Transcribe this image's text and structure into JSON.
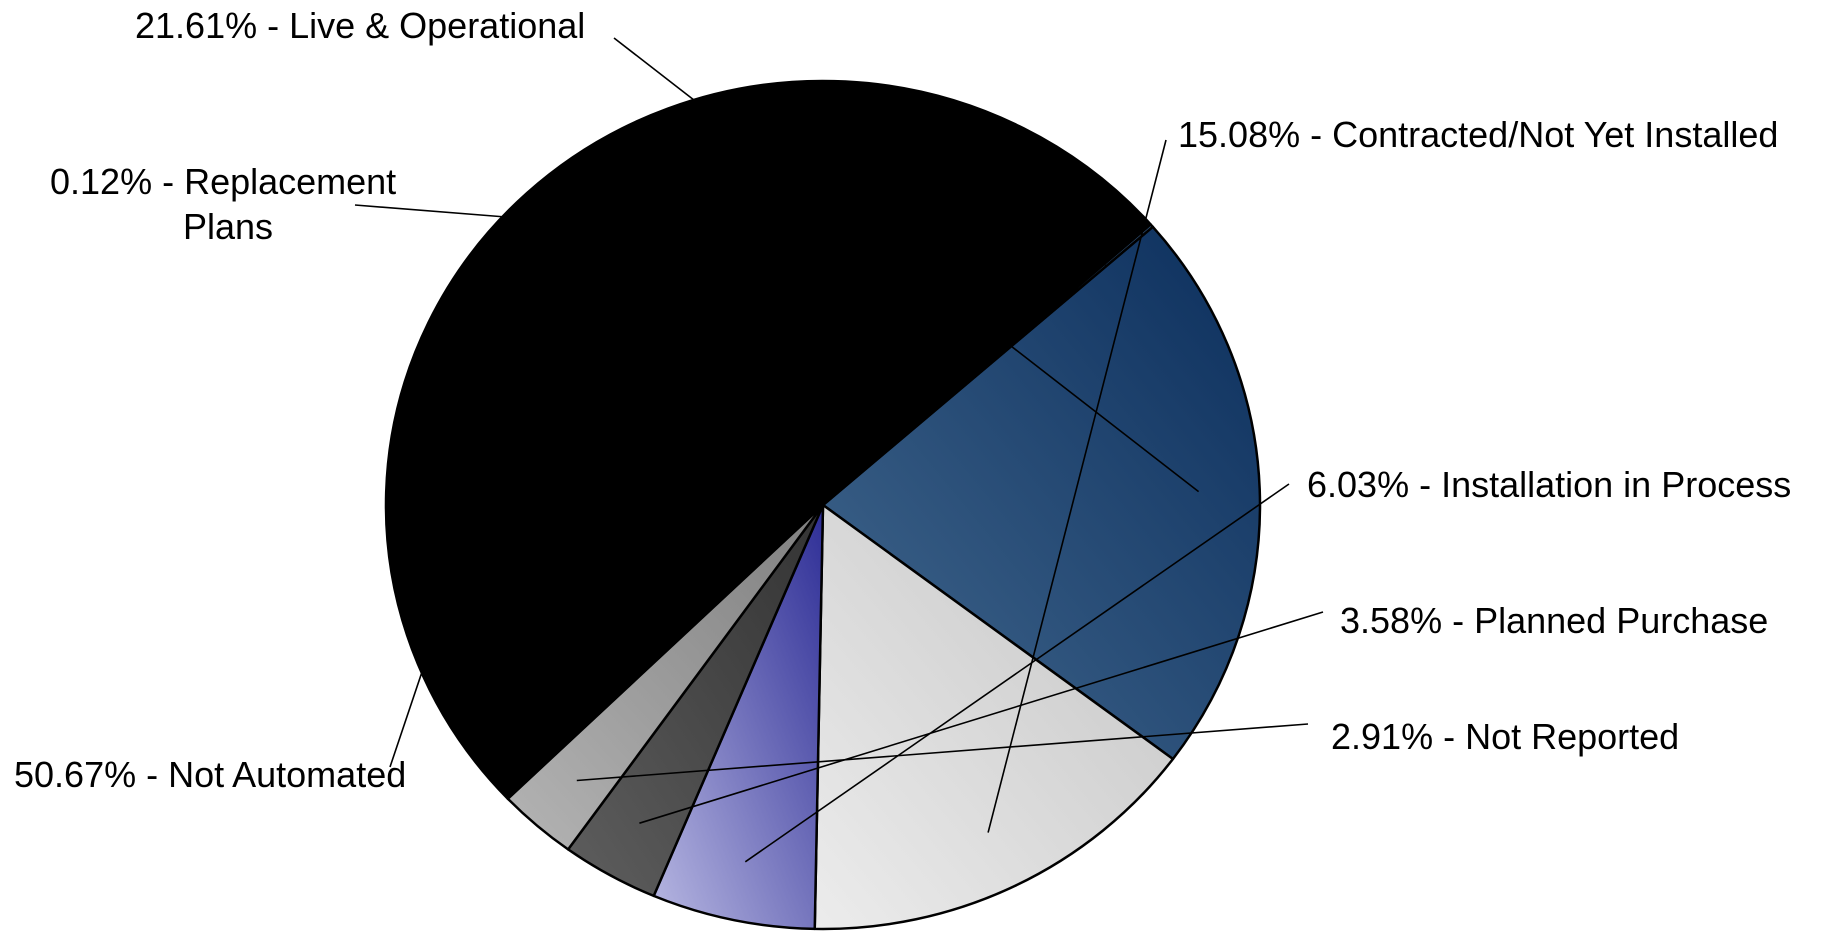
{
  "chart_data": {
    "type": "pie",
    "start_angle_deg": -41,
    "direction": "clockwise",
    "slices": [
      {
        "label": "Live & Operational",
        "value": 21.61,
        "text": "21.61% - Live & Operational",
        "color": "#2f5279",
        "gradient": [
          "#43698f",
          "#0b2e5c"
        ]
      },
      {
        "label": "Contracted/Not Yet Installed",
        "value": 15.08,
        "text": "15.08% - Contracted/Not Yet Installed",
        "color": "#d6d6d6",
        "gradient": [
          "#ececec",
          "#c4c4c4"
        ]
      },
      {
        "label": "Installation in Process",
        "value": 6.03,
        "text": "6.03% - Installation in Process",
        "color": "#7a7ac0",
        "gradient": [
          "#b8b8e2",
          "#2e2e96"
        ]
      },
      {
        "label": "Planned Purchase",
        "value": 3.58,
        "text": "3.58% - Planned Purchase",
        "color": "#4c4c4c",
        "gradient": [
          "#5e5e5e",
          "#333333"
        ]
      },
      {
        "label": "Not Reported",
        "value": 2.91,
        "text": "2.91% - Not Reported",
        "color": "#999999",
        "gradient": [
          "#b4b4b4",
          "#808080"
        ]
      },
      {
        "label": "Not Automated",
        "value": 50.67,
        "text": "50.67% - Not Automated",
        "color": "#000000",
        "gradient": [
          "#000000",
          "#000000"
        ]
      },
      {
        "label": "Replacement Plans",
        "value": 0.12,
        "text": "0.12% - Replacement Plans",
        "text_lines": [
          "0.12% - Replacement",
          "Plans"
        ],
        "color": "#2f5279",
        "gradient": [
          "#43698f",
          "#2f5279"
        ]
      }
    ]
  }
}
